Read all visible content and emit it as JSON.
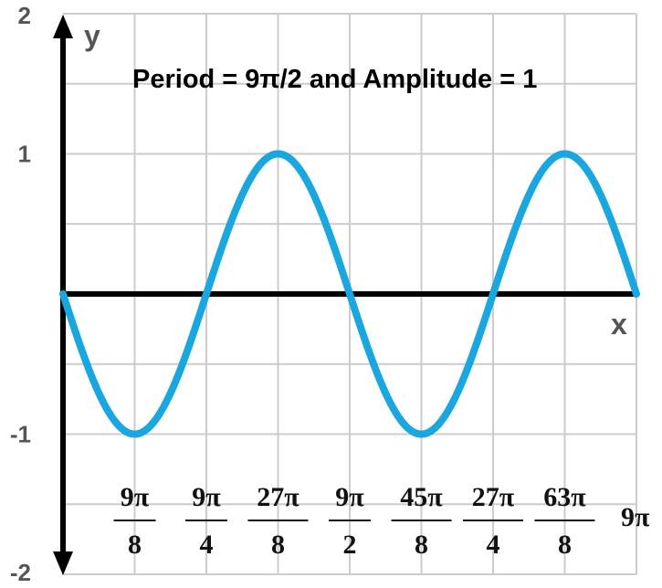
{
  "chart_data": {
    "type": "line",
    "title": "Period = 9π/2 and Amplitude = 1",
    "xlabel": "x",
    "ylabel": "y",
    "function": "y = -sin(4x/9)",
    "period": "9π/2",
    "amplitude": 1,
    "ylim": [
      -2,
      2
    ],
    "xlim_pi": [
      0,
      9
    ],
    "y_ticks": [
      "2",
      "1",
      "-1",
      "-2"
    ],
    "y_tick_values": [
      2,
      1,
      -1,
      -2
    ],
    "x_ticks": [
      {
        "num": "9π",
        "den": "8",
        "value_pi": 1.125
      },
      {
        "num": "9π",
        "den": "4",
        "value_pi": 2.25
      },
      {
        "num": "27π",
        "den": "8",
        "value_pi": 3.375
      },
      {
        "num": "9π",
        "den": "2",
        "value_pi": 4.5
      },
      {
        "num": "45π",
        "den": "8",
        "value_pi": 5.625
      },
      {
        "num": "27π",
        "den": "4",
        "value_pi": 6.75
      },
      {
        "num": "63π",
        "den": "8",
        "value_pi": 7.875
      }
    ],
    "x_end_label": "9π",
    "key_points": [
      {
        "x": "0",
        "y": 0
      },
      {
        "x": "9π/8",
        "y": -1
      },
      {
        "x": "9π/4",
        "y": 0
      },
      {
        "x": "27π/8",
        "y": 1
      },
      {
        "x": "9π/2",
        "y": 0
      },
      {
        "x": "45π/8",
        "y": -1
      },
      {
        "x": "27π/4",
        "y": 0
      },
      {
        "x": "63π/8",
        "y": 1
      },
      {
        "x": "9π",
        "y": 0
      }
    ],
    "grid": true,
    "colors": {
      "curve": "#1aa7e0",
      "grid": "#cccccc",
      "axis": "#000000"
    }
  }
}
